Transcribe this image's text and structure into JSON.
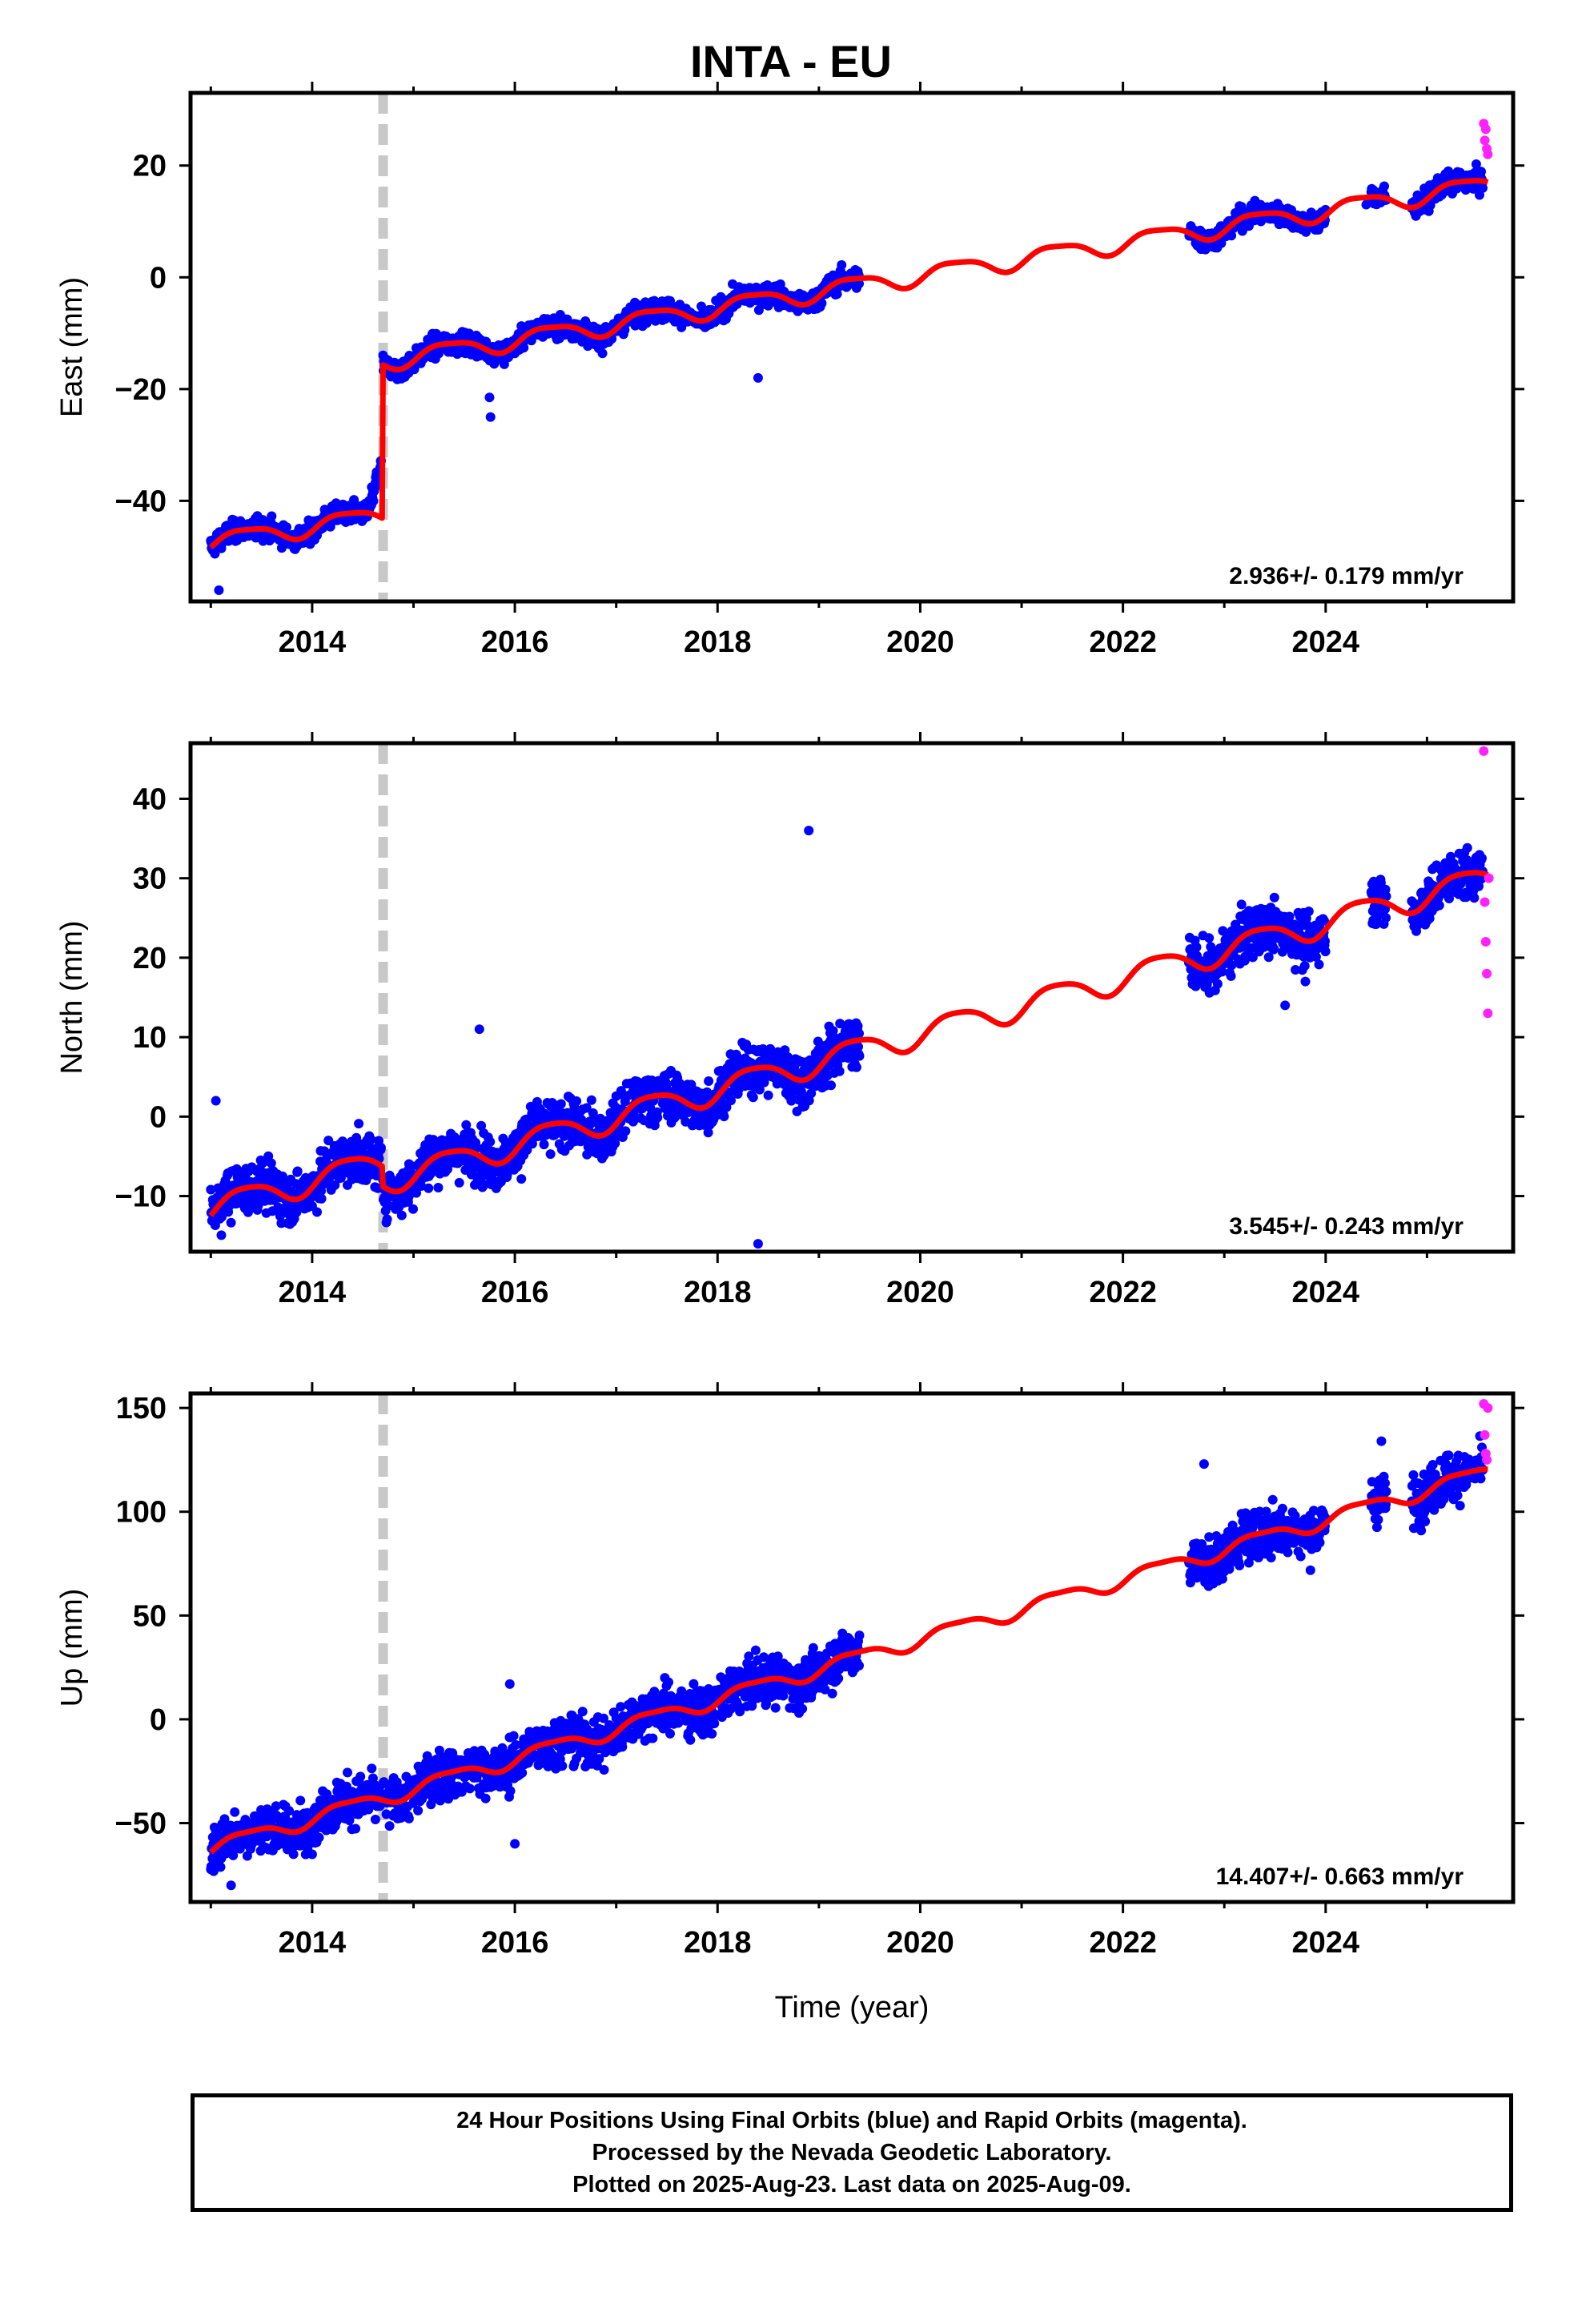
{
  "title": "INTA - EU",
  "caption": [
    "24 Hour Positions Using Final Orbits (blue) and Rapid Orbits (magenta).",
    "Processed by the Nevada Geodetic Laboratory.",
    "Plotted on 2025-Aug-23. Last data on 2025-Aug-09."
  ],
  "colors": {
    "final_orbits": "#0000ff",
    "rapid_orbits": "#ff22ff",
    "model_fit": "#ff0000",
    "equipment_change": "#c8c8c8"
  },
  "chart_data": [
    {
      "type": "scatter",
      "component": "East",
      "ylabel": "East (mm)",
      "xlabel": "",
      "xlim": [
        2012.8,
        2025.85
      ],
      "ylim": [
        -58,
        33
      ],
      "xticks": [
        2014,
        2016,
        2018,
        2020,
        2022,
        2024
      ],
      "yticks": [
        -40,
        -20,
        0,
        20
      ],
      "rate": "2.936+/- 0.179 mm/yr",
      "equipment_change_epoch": 2014.7,
      "final_data_spans": [
        [
          2013.0,
          2014.68
        ],
        [
          2014.7,
          2019.4
        ],
        [
          2022.65,
          2024.0
        ],
        [
          2024.45,
          2024.6
        ],
        [
          2024.85,
          2025.55
        ]
      ],
      "rapid_points": {
        "x": [
          2025.56,
          2025.57,
          2025.58,
          2025.59,
          2025.6
        ],
        "y": [
          27.5,
          24.5,
          26.5,
          23,
          22
        ]
      },
      "outliers": {
        "x": [
          2013.08,
          2015.75,
          2015.76,
          2018.4,
          2024.4
        ],
        "y": [
          -56,
          -21.5,
          -25,
          -18,
          13
        ]
      },
      "series": [
        {
          "name": "model",
          "segments": [
            {
              "from": 2013.0,
              "to": 2014.69,
              "offset": -47.4,
              "trend": 2.9,
              "annual": 1.6,
              "semiannual": 0.4
            },
            {
              "from": 2014.7,
              "to": 2025.6,
              "offset": -47.4,
              "step": 27.5,
              "trend": 2.9,
              "annual": 1.6,
              "semiannual": 0.4
            }
          ]
        }
      ]
    },
    {
      "type": "scatter",
      "component": "North",
      "ylabel": "North (mm)",
      "xlabel": "",
      "xlim": [
        2012.8,
        2025.85
      ],
      "ylim": [
        -17,
        47
      ],
      "xticks": [
        2014,
        2016,
        2018,
        2020,
        2022,
        2024
      ],
      "yticks": [
        -10,
        0,
        10,
        20,
        30,
        40
      ],
      "rate": "3.545+/- 0.243 mm/yr",
      "equipment_change_epoch": 2014.7,
      "final_data_spans": [
        [
          2013.0,
          2014.68
        ],
        [
          2014.7,
          2019.4
        ],
        [
          2022.65,
          2024.0
        ],
        [
          2024.45,
          2024.6
        ],
        [
          2024.85,
          2025.55
        ]
      ],
      "rapid_points": {
        "x": [
          2025.56,
          2025.57,
          2025.58,
          2025.59,
          2025.6,
          2025.61
        ],
        "y": [
          46,
          27,
          22,
          18,
          13,
          30
        ]
      },
      "outliers": {
        "x": [
          2013.05,
          2015.65,
          2018.4,
          2018.9,
          2023.6,
          2023.8
        ],
        "y": [
          2,
          11,
          -16,
          36,
          14,
          17
        ]
      },
      "series": [
        {
          "name": "model",
          "segments": [
            {
              "from": 2013.0,
              "to": 2014.69,
              "offset": -11.5,
              "trend": 3.5,
              "annual": 1.6,
              "semiannual": 0.3
            },
            {
              "from": 2014.7,
              "to": 2025.6,
              "offset": -11.5,
              "step": -2.5,
              "trend": 3.5,
              "annual": 1.6,
              "semiannual": 0.3
            }
          ]
        }
      ]
    },
    {
      "type": "scatter",
      "component": "Up",
      "ylabel": "Up (mm)",
      "xlabel": "Time (year)",
      "xlim": [
        2012.8,
        2025.85
      ],
      "ylim": [
        -88,
        157
      ],
      "xticks": [
        2014,
        2016,
        2018,
        2020,
        2022,
        2024
      ],
      "yticks": [
        -50,
        0,
        50,
        100,
        150
      ],
      "rate": "14.407+/- 0.663 mm/yr",
      "equipment_change_epoch": 2014.7,
      "final_data_spans": [
        [
          2013.0,
          2014.68
        ],
        [
          2014.7,
          2019.4
        ],
        [
          2022.65,
          2024.0
        ],
        [
          2024.45,
          2024.6
        ],
        [
          2024.85,
          2025.55
        ]
      ],
      "rapid_points": {
        "x": [
          2025.56,
          2025.57,
          2025.58,
          2025.59,
          2025.6
        ],
        "y": [
          152,
          137,
          128,
          125,
          150
        ]
      },
      "outliers": {
        "x": [
          2013.2,
          2015.95,
          2016.0,
          2022.8,
          2024.55
        ],
        "y": [
          -80,
          17,
          -60,
          123,
          134
        ]
      },
      "series": [
        {
          "name": "model",
          "segments": [
            {
              "from": 2013.0,
              "to": 2025.6,
              "offset": -62,
              "trend": 14.4,
              "annual": 3.5,
              "semiannual": 1.0
            }
          ]
        }
      ]
    }
  ]
}
